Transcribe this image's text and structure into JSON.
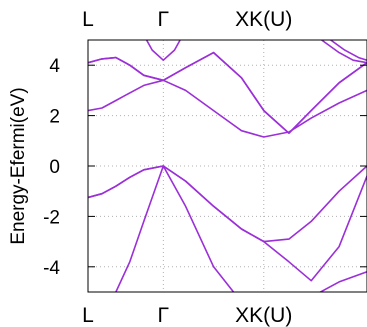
{
  "chart_data": {
    "type": "line",
    "title": "",
    "xlabel": "",
    "ylabel": "Energy-Efermi(eV)",
    "xlim": [
      0,
      1
    ],
    "ylim": [
      -5,
      5
    ],
    "yticks": [
      4,
      2,
      0,
      -2,
      -4
    ],
    "ytick_labels": [
      "4",
      "2",
      "0",
      "-2",
      "-4"
    ],
    "kpoints": [
      {
        "label": "L",
        "x": 0.0
      },
      {
        "label": "Γ",
        "x": 0.27
      },
      {
        "label": "XK(U)",
        "x": 0.63
      }
    ],
    "grid": true,
    "grid_style": "dotted",
    "line_color": "#9b2fd8",
    "series": [
      {
        "x": [
          0,
          0.05,
          0.1,
          0.15,
          0.2,
          0.27,
          0.35,
          0.45,
          0.55,
          0.63,
          0.72,
          0.8,
          0.9,
          1.0
        ],
        "values": [
          -5.8,
          -5.6,
          -5.0,
          -3.8,
          -2.2,
          0.0,
          -1.6,
          -4.0,
          -5.4,
          -5.8,
          -5.6,
          -5.2,
          -4.6,
          -4.2
        ]
      },
      {
        "x": [
          0,
          0.05,
          0.1,
          0.15,
          0.2,
          0.27,
          0.35,
          0.45,
          0.55,
          0.63,
          0.72,
          0.8,
          0.9,
          1.0
        ],
        "values": [
          -1.25,
          -1.1,
          -0.8,
          -0.45,
          -0.15,
          0.0,
          -0.6,
          -1.6,
          -2.5,
          -3.0,
          -3.8,
          -4.55,
          -3.2,
          -0.4
        ]
      },
      {
        "x": [
          0,
          0.05,
          0.1,
          0.15,
          0.2,
          0.27,
          0.35,
          0.45,
          0.55,
          0.63,
          0.72,
          0.8,
          0.9,
          1.0
        ],
        "values": [
          -1.25,
          -1.1,
          -0.8,
          -0.45,
          -0.15,
          0.0,
          -0.6,
          -1.6,
          -2.5,
          -3.0,
          -2.9,
          -2.2,
          -1.0,
          0.0
        ]
      },
      {
        "x": [
          0,
          0.05,
          0.1,
          0.15,
          0.2,
          0.27,
          0.35,
          0.45,
          0.55,
          0.63,
          0.72,
          0.8,
          0.9,
          1.0
        ],
        "values": [
          2.2,
          2.3,
          2.6,
          2.9,
          3.2,
          3.4,
          3.0,
          2.2,
          1.4,
          1.15,
          1.35,
          1.9,
          2.5,
          3.0
        ]
      },
      {
        "x": [
          0,
          0.05,
          0.1,
          0.15,
          0.2,
          0.27,
          0.35,
          0.45,
          0.55,
          0.63,
          0.72,
          0.8,
          0.9,
          1.0
        ],
        "values": [
          4.1,
          4.25,
          4.3,
          4.0,
          3.6,
          3.4,
          3.9,
          4.5,
          3.5,
          2.2,
          1.3,
          2.2,
          3.3,
          4.1
        ]
      },
      {
        "x": [
          0,
          0.05,
          0.1,
          0.15,
          0.2,
          0.27,
          0.35,
          0.45,
          0.55,
          0.63,
          0.72,
          0.8,
          0.9,
          1.0
        ],
        "values": [
          4.1,
          4.25,
          4.3,
          4.0,
          3.6,
          3.4,
          3.9,
          4.5,
          3.5,
          2.2,
          1.3,
          2.2,
          3.3,
          4.1
        ]
      },
      {
        "x": [
          0.2,
          0.23,
          0.27,
          0.31,
          0.34
        ],
        "values": [
          5.2,
          4.6,
          4.2,
          4.6,
          5.2
        ]
      },
      {
        "x": [
          0.8,
          0.85,
          0.9,
          0.95,
          1.0
        ],
        "values": [
          5.3,
          4.9,
          4.5,
          4.2,
          4.1
        ]
      },
      {
        "x": [
          0.82,
          0.87,
          0.92,
          0.97,
          1.0
        ],
        "values": [
          5.6,
          5.0,
          4.6,
          4.3,
          4.2
        ]
      }
    ]
  }
}
